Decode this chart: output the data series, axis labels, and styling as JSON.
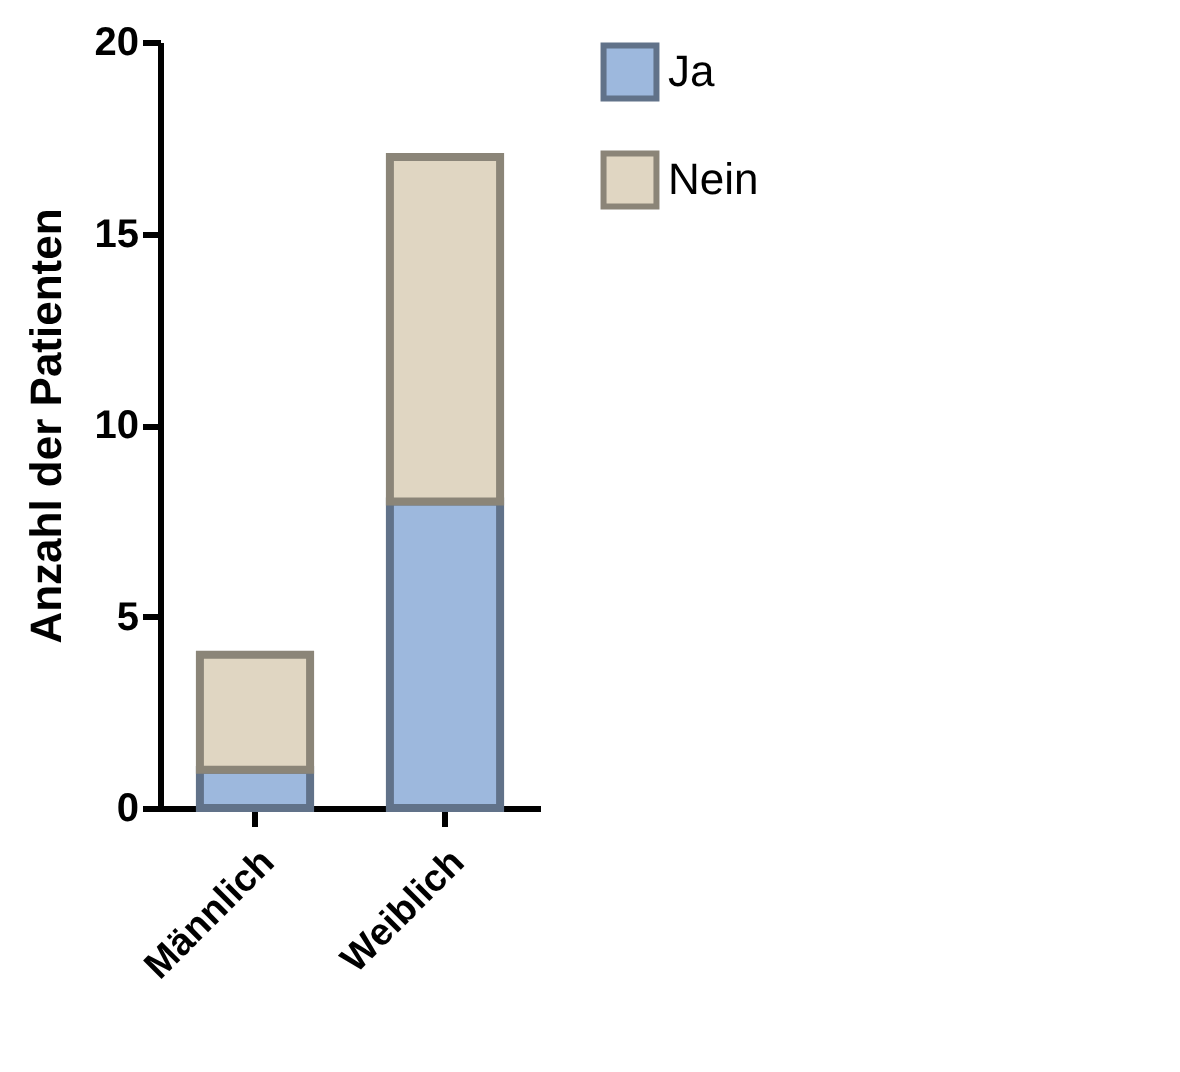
{
  "chart_data": {
    "type": "bar",
    "stacked": true,
    "ylabel": "Anzahl der Patienten",
    "categories": [
      "Männlich",
      "Weiblich"
    ],
    "series": [
      {
        "name": "Ja",
        "color": "#9db8dd",
        "values": [
          1,
          8
        ]
      },
      {
        "name": "Nein",
        "color": "#e0d6c2",
        "values": [
          3,
          9
        ]
      }
    ],
    "ylim": [
      0,
      20
    ],
    "yticks": [
      0,
      5,
      10,
      15,
      20
    ],
    "legend": "top right"
  }
}
